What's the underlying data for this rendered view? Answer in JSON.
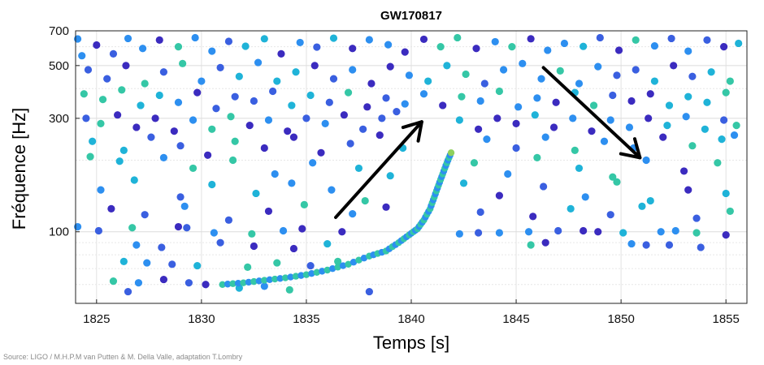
{
  "chart_data": {
    "type": "scatter",
    "title": "GW170817",
    "xlabel": "Temps [s]",
    "ylabel": "Fréquence [Hz]",
    "xlim": [
      1824,
      1856
    ],
    "ylim": [
      50,
      700
    ],
    "y_scale": "log",
    "xticks": [
      1825,
      1830,
      1835,
      1840,
      1845,
      1850,
      1855
    ],
    "yticks": [
      100,
      300,
      500,
      700
    ],
    "grid": true,
    "colormap": [
      "#3b2bbf",
      "#3a5fe0",
      "#2d8ff0",
      "#1fb3d8",
      "#35c7a6",
      "#8fd05c"
    ],
    "annotations": [
      {
        "type": "arrow",
        "from": [
          1836.4,
          115
        ],
        "to": [
          1840.5,
          290
        ]
      },
      {
        "type": "arrow",
        "from": [
          1846.3,
          490
        ],
        "to": [
          1850.9,
          205
        ]
      }
    ],
    "source": "Source: LIGO / M.H.P.M van Putten & M. Della Valle, adaptation T.Lombry",
    "chirp_track": [
      [
        1831.0,
        60
      ],
      [
        1832.0,
        61
      ],
      [
        1833.0,
        62.5
      ],
      [
        1834.0,
        64
      ],
      [
        1835.0,
        66
      ],
      [
        1836.0,
        69
      ],
      [
        1837.0,
        73
      ],
      [
        1838.0,
        79
      ],
      [
        1838.8,
        83
      ],
      [
        1839.4,
        90
      ],
      [
        1839.9,
        97
      ],
      [
        1840.3,
        103
      ],
      [
        1840.6,
        112
      ],
      [
        1840.9,
        125
      ],
      [
        1841.1,
        140
      ],
      [
        1841.3,
        157
      ],
      [
        1841.5,
        175
      ],
      [
        1841.7,
        195
      ],
      [
        1841.9,
        215
      ]
    ],
    "noise_points": [
      [
        1824.1,
        647
      ],
      [
        1824.3,
        550
      ],
      [
        1825.0,
        610
      ],
      [
        1825.8,
        560
      ],
      [
        1826.5,
        650
      ],
      [
        1827.2,
        590
      ],
      [
        1828.0,
        640
      ],
      [
        1828.9,
        600
      ],
      [
        1829.7,
        655
      ],
      [
        1830.5,
        575
      ],
      [
        1831.3,
        632
      ],
      [
        1832.1,
        603
      ],
      [
        1833.0,
        648
      ],
      [
        1833.8,
        560
      ],
      [
        1834.7,
        625
      ],
      [
        1835.5,
        598
      ],
      [
        1836.3,
        652
      ],
      [
        1837.2,
        590
      ],
      [
        1838.0,
        642
      ],
      [
        1838.9,
        612
      ],
      [
        1839.7,
        570
      ],
      [
        1840.6,
        645
      ],
      [
        1841.4,
        600
      ],
      [
        1842.2,
        655
      ],
      [
        1843.1,
        590
      ],
      [
        1844.0,
        630
      ],
      [
        1844.8,
        600
      ],
      [
        1845.7,
        648
      ],
      [
        1846.5,
        580
      ],
      [
        1847.3,
        620
      ],
      [
        1848.2,
        602
      ],
      [
        1849.0,
        655
      ],
      [
        1849.9,
        580
      ],
      [
        1850.7,
        640
      ],
      [
        1851.6,
        605
      ],
      [
        1852.4,
        650
      ],
      [
        1853.2,
        575
      ],
      [
        1854.1,
        640
      ],
      [
        1854.9,
        600
      ],
      [
        1855.6,
        620
      ],
      [
        1824.6,
        480
      ],
      [
        1825.5,
        440
      ],
      [
        1826.4,
        500
      ],
      [
        1827.3,
        420
      ],
      [
        1828.2,
        470
      ],
      [
        1829.1,
        510
      ],
      [
        1830.0,
        430
      ],
      [
        1830.9,
        490
      ],
      [
        1831.8,
        450
      ],
      [
        1832.7,
        515
      ],
      [
        1833.6,
        430
      ],
      [
        1834.5,
        470
      ],
      [
        1835.4,
        500
      ],
      [
        1836.3,
        440
      ],
      [
        1837.2,
        480
      ],
      [
        1838.1,
        420
      ],
      [
        1839.0,
        495
      ],
      [
        1839.9,
        455
      ],
      [
        1840.8,
        430
      ],
      [
        1841.7,
        500
      ],
      [
        1842.6,
        460
      ],
      [
        1843.5,
        420
      ],
      [
        1844.4,
        480
      ],
      [
        1845.3,
        510
      ],
      [
        1846.2,
        440
      ],
      [
        1847.1,
        475
      ],
      [
        1848.0,
        420
      ],
      [
        1848.9,
        495
      ],
      [
        1849.8,
        455
      ],
      [
        1850.7,
        480
      ],
      [
        1851.6,
        430
      ],
      [
        1852.5,
        500
      ],
      [
        1853.4,
        450
      ],
      [
        1854.3,
        470
      ],
      [
        1855.2,
        430
      ],
      [
        1824.4,
        380
      ],
      [
        1825.3,
        360
      ],
      [
        1826.2,
        395
      ],
      [
        1827.1,
        340
      ],
      [
        1828.0,
        375
      ],
      [
        1828.9,
        350
      ],
      [
        1829.8,
        385
      ],
      [
        1830.7,
        330
      ],
      [
        1831.6,
        370
      ],
      [
        1832.5,
        355
      ],
      [
        1833.4,
        390
      ],
      [
        1834.3,
        340
      ],
      [
        1835.2,
        375
      ],
      [
        1836.1,
        350
      ],
      [
        1837.0,
        385
      ],
      [
        1837.9,
        335
      ],
      [
        1838.8,
        365
      ],
      [
        1839.7,
        345
      ],
      [
        1840.6,
        380
      ],
      [
        1841.5,
        340
      ],
      [
        1842.4,
        370
      ],
      [
        1843.3,
        355
      ],
      [
        1844.2,
        390
      ],
      [
        1845.1,
        335
      ],
      [
        1846.0,
        365
      ],
      [
        1846.9,
        350
      ],
      [
        1847.8,
        385
      ],
      [
        1848.7,
        340
      ],
      [
        1849.6,
        375
      ],
      [
        1850.5,
        355
      ],
      [
        1851.4,
        380
      ],
      [
        1852.3,
        340
      ],
      [
        1853.2,
        370
      ],
      [
        1854.1,
        350
      ],
      [
        1855.0,
        385
      ],
      [
        1824.5,
        300
      ],
      [
        1825.2,
        285
      ],
      [
        1826.0,
        310
      ],
      [
        1826.9,
        275
      ],
      [
        1827.8,
        300
      ],
      [
        1828.7,
        265
      ],
      [
        1829.6,
        295
      ],
      [
        1830.5,
        270
      ],
      [
        1831.4,
        305
      ],
      [
        1832.3,
        280
      ],
      [
        1833.2,
        295
      ],
      [
        1834.1,
        265
      ],
      [
        1835.0,
        300
      ],
      [
        1835.9,
        285
      ],
      [
        1836.8,
        310
      ],
      [
        1837.7,
        270
      ],
      [
        1838.6,
        300
      ],
      [
        1839.3,
        320
      ],
      [
        1842.3,
        295
      ],
      [
        1843.2,
        270
      ],
      [
        1844.1,
        300
      ],
      [
        1845.0,
        285
      ],
      [
        1845.9,
        310
      ],
      [
        1846.8,
        275
      ],
      [
        1847.7,
        300
      ],
      [
        1848.6,
        265
      ],
      [
        1849.5,
        295
      ],
      [
        1850.4,
        275
      ],
      [
        1851.3,
        300
      ],
      [
        1852.2,
        280
      ],
      [
        1853.1,
        305
      ],
      [
        1854.0,
        270
      ],
      [
        1854.9,
        295
      ],
      [
        1855.5,
        280
      ],
      [
        1824.8,
        240
      ],
      [
        1826.3,
        220
      ],
      [
        1827.6,
        250
      ],
      [
        1829.0,
        230
      ],
      [
        1830.3,
        210
      ],
      [
        1831.6,
        240
      ],
      [
        1833.0,
        225
      ],
      [
        1834.4,
        250
      ],
      [
        1835.7,
        215
      ],
      [
        1837.1,
        235
      ],
      [
        1838.5,
        255
      ],
      [
        1839.6,
        225
      ],
      [
        1843.6,
        245
      ],
      [
        1845.0,
        225
      ],
      [
        1846.4,
        250
      ],
      [
        1847.8,
        220
      ],
      [
        1849.2,
        240
      ],
      [
        1850.6,
        225
      ],
      [
        1852.0,
        250
      ],
      [
        1853.4,
        230
      ],
      [
        1854.8,
        245
      ],
      [
        1855.4,
        255
      ],
      [
        1824.7,
        207
      ],
      [
        1826.1,
        198
      ],
      [
        1828.2,
        205
      ],
      [
        1829.6,
        185
      ],
      [
        1831.5,
        200
      ],
      [
        1833.5,
        175
      ],
      [
        1835.3,
        195
      ],
      [
        1837.5,
        185
      ],
      [
        1839.0,
        172
      ],
      [
        1843.0,
        195
      ],
      [
        1844.6,
        175
      ],
      [
        1846.0,
        205
      ],
      [
        1848.0,
        185
      ],
      [
        1849.6,
        170
      ],
      [
        1851.2,
        200
      ],
      [
        1853.0,
        180
      ],
      [
        1854.6,
        195
      ],
      [
        1825.2,
        150
      ],
      [
        1826.8,
        165
      ],
      [
        1829.0,
        140
      ],
      [
        1830.5,
        158
      ],
      [
        1832.6,
        145
      ],
      [
        1834.3,
        160
      ],
      [
        1836.2,
        150
      ],
      [
        1837.8,
        135
      ],
      [
        1842.5,
        160
      ],
      [
        1844.2,
        142
      ],
      [
        1846.3,
        155
      ],
      [
        1848.3,
        140
      ],
      [
        1849.8,
        162
      ],
      [
        1851.4,
        135
      ],
      [
        1853.2,
        150
      ],
      [
        1855.0,
        145
      ],
      [
        1825.7,
        125
      ],
      [
        1827.3,
        118
      ],
      [
        1829.2,
        128
      ],
      [
        1831.3,
        112
      ],
      [
        1833.2,
        122
      ],
      [
        1834.9,
        130
      ],
      [
        1837.2,
        119
      ],
      [
        1838.8,
        127
      ],
      [
        1843.3,
        121
      ],
      [
        1845.8,
        116
      ],
      [
        1847.6,
        125
      ],
      [
        1849.5,
        118
      ],
      [
        1851.0,
        128
      ],
      [
        1853.6,
        114
      ],
      [
        1855.2,
        122
      ],
      [
        1824.1,
        105
      ],
      [
        1825.1,
        101
      ],
      [
        1826.7,
        104
      ],
      [
        1828.9,
        105
      ],
      [
        1829.3,
        104
      ],
      [
        1830.6,
        99
      ],
      [
        1832.4,
        98
      ],
      [
        1833.9,
        101
      ],
      [
        1834.8,
        103
      ],
      [
        1836.7,
        100
      ],
      [
        1842.3,
        98
      ],
      [
        1843.2,
        99
      ],
      [
        1844.2,
        99
      ],
      [
        1845.6,
        100
      ],
      [
        1847.0,
        101
      ],
      [
        1848.2,
        101
      ],
      [
        1848.9,
        100
      ],
      [
        1850.1,
        99
      ],
      [
        1851.9,
        100
      ],
      [
        1852.6,
        101
      ],
      [
        1853.6,
        99
      ],
      [
        1855.0,
        97
      ],
      [
        1826.9,
        88
      ],
      [
        1828.1,
        86
      ],
      [
        1830.9,
        90
      ],
      [
        1832.5,
        87
      ],
      [
        1834.4,
        85
      ],
      [
        1836.0,
        89
      ],
      [
        1845.7,
        88
      ],
      [
        1846.4,
        90
      ],
      [
        1850.5,
        89
      ],
      [
        1851.2,
        88
      ],
      [
        1852.3,
        88
      ],
      [
        1853.8,
        86
      ],
      [
        1826.3,
        75
      ],
      [
        1827.4,
        74
      ],
      [
        1828.6,
        73
      ],
      [
        1829.8,
        72
      ],
      [
        1832.2,
        71
      ],
      [
        1833.6,
        74
      ],
      [
        1835.2,
        72
      ],
      [
        1836.5,
        75
      ],
      [
        1825.8,
        62
      ],
      [
        1827.0,
        61
      ],
      [
        1828.2,
        63
      ],
      [
        1829.4,
        61
      ],
      [
        1830.2,
        60
      ],
      [
        1831.8,
        58
      ],
      [
        1833.0,
        59
      ],
      [
        1834.2,
        57
      ],
      [
        1838.0,
        56
      ],
      [
        1826.5,
        56
      ]
    ]
  }
}
